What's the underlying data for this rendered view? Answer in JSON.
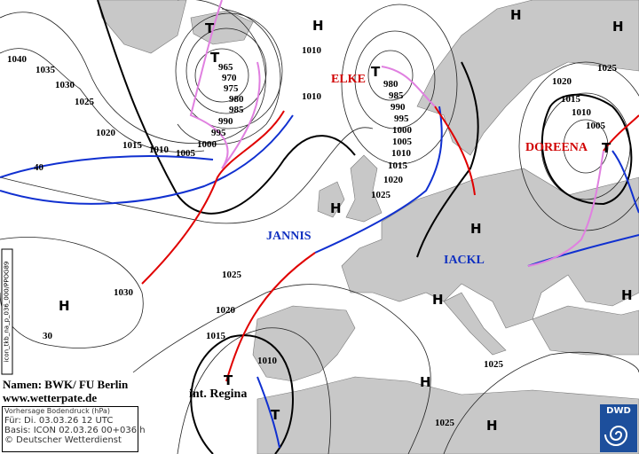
{
  "map": {
    "pressure_centers": [
      {
        "type": "H"
      },
      {
        "type": "H"
      },
      {
        "type": "H"
      },
      {
        "type": "H"
      },
      {
        "type": "H"
      },
      {
        "type": "H"
      },
      {
        "type": "H"
      },
      {
        "type": "H"
      },
      {
        "type": "H"
      },
      {
        "type": "H"
      },
      {
        "type": "T"
      },
      {
        "type": "T"
      },
      {
        "type": "T"
      },
      {
        "type": "T"
      },
      {
        "type": "T"
      },
      {
        "type": "T"
      }
    ],
    "system_names": [
      {
        "name": "ELKE",
        "color": "#d00000"
      },
      {
        "name": "DOREENA",
        "color": "#d00000"
      },
      {
        "name": "JANNIS",
        "color": "#1030c0"
      },
      {
        "name": "IACKL",
        "color": "#1030c0"
      },
      {
        "name": "int. Regina",
        "color": "#000000"
      }
    ],
    "isobar_labels": [
      "1040",
      "1035",
      "1030",
      "1025",
      "1020",
      "1015",
      "1010",
      "1005",
      "1000",
      "995",
      "990",
      "985",
      "980",
      "975",
      "970",
      "965",
      "1010",
      "1010",
      "980",
      "985",
      "990",
      "995",
      "1000",
      "1005",
      "1010",
      "1015",
      "1020",
      "1025",
      "1025",
      "1020",
      "1015",
      "1010",
      "1005",
      "1030",
      "1025",
      "1020",
      "1015",
      "1010",
      "1025",
      "1025"
    ],
    "latitude_labels": [
      "40",
      "30"
    ]
  },
  "credits": {
    "names": "Namen: BWK/ FU Berlin",
    "website": "www.wetterpate.de"
  },
  "info": {
    "title": "Vorhersage Bodendruck (hPa)",
    "valid": "Für:  Di. 03.03.26  12 UTC",
    "basis": "Basis: ICON  02.03.26 00+036 h",
    "copyright": "© Deutscher Wetterdienst",
    "model_code": "icon_tkb_na_p_036_000/PPOG89"
  },
  "logo": {
    "text": "DWD"
  },
  "colors": {
    "land": "#c8c8c8",
    "sea": "#ffffff",
    "cold_front": "#1030d0",
    "warm_front": "#e00000",
    "occlusion": "#e080e0"
  }
}
